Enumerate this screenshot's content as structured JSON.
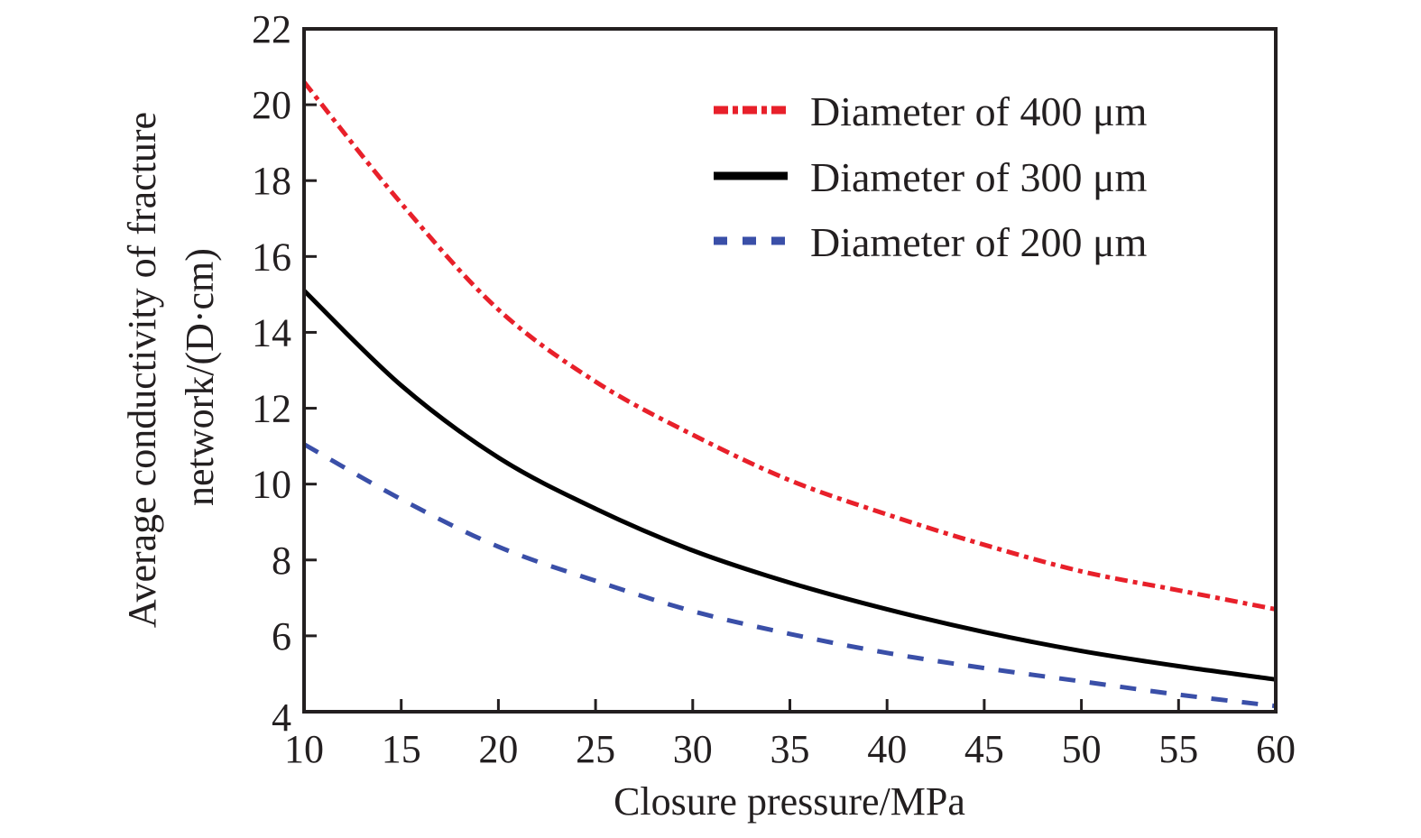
{
  "chart_data": {
    "type": "line",
    "title": "",
    "xlabel": "Closure pressure/MPa",
    "ylabel_line1": "Average conductivity of fracture",
    "ylabel_line2": "network/(D·cm)",
    "xlim": [
      10,
      60
    ],
    "ylim": [
      4,
      22
    ],
    "xticks": [
      10,
      15,
      20,
      25,
      30,
      35,
      40,
      45,
      50,
      55,
      60
    ],
    "yticks": [
      4,
      6,
      8,
      10,
      12,
      14,
      16,
      18,
      20,
      22
    ],
    "grid": false,
    "legend_position": "top-right",
    "x": [
      10,
      15,
      20,
      25,
      30,
      35,
      40,
      45,
      50,
      55,
      60
    ],
    "series": [
      {
        "name": "Diameter of 400 μm",
        "color": "#e8202a",
        "style": "dash-dot",
        "values": [
          20.6,
          17.4,
          14.6,
          12.7,
          11.3,
          10.1,
          9.2,
          8.4,
          7.7,
          7.2,
          6.7
        ]
      },
      {
        "name": "Diameter of 300 μm",
        "color": "#000000",
        "style": "solid",
        "values": [
          15.1,
          12.6,
          10.7,
          9.35,
          8.25,
          7.4,
          6.7,
          6.1,
          5.6,
          5.2,
          4.85
        ]
      },
      {
        "name": "Diameter of 200 μm",
        "color": "#3a4fa8",
        "style": "dashed",
        "values": [
          11.05,
          9.6,
          8.35,
          7.45,
          6.65,
          6.05,
          5.55,
          5.15,
          4.8,
          4.45,
          4.15
        ]
      }
    ]
  }
}
